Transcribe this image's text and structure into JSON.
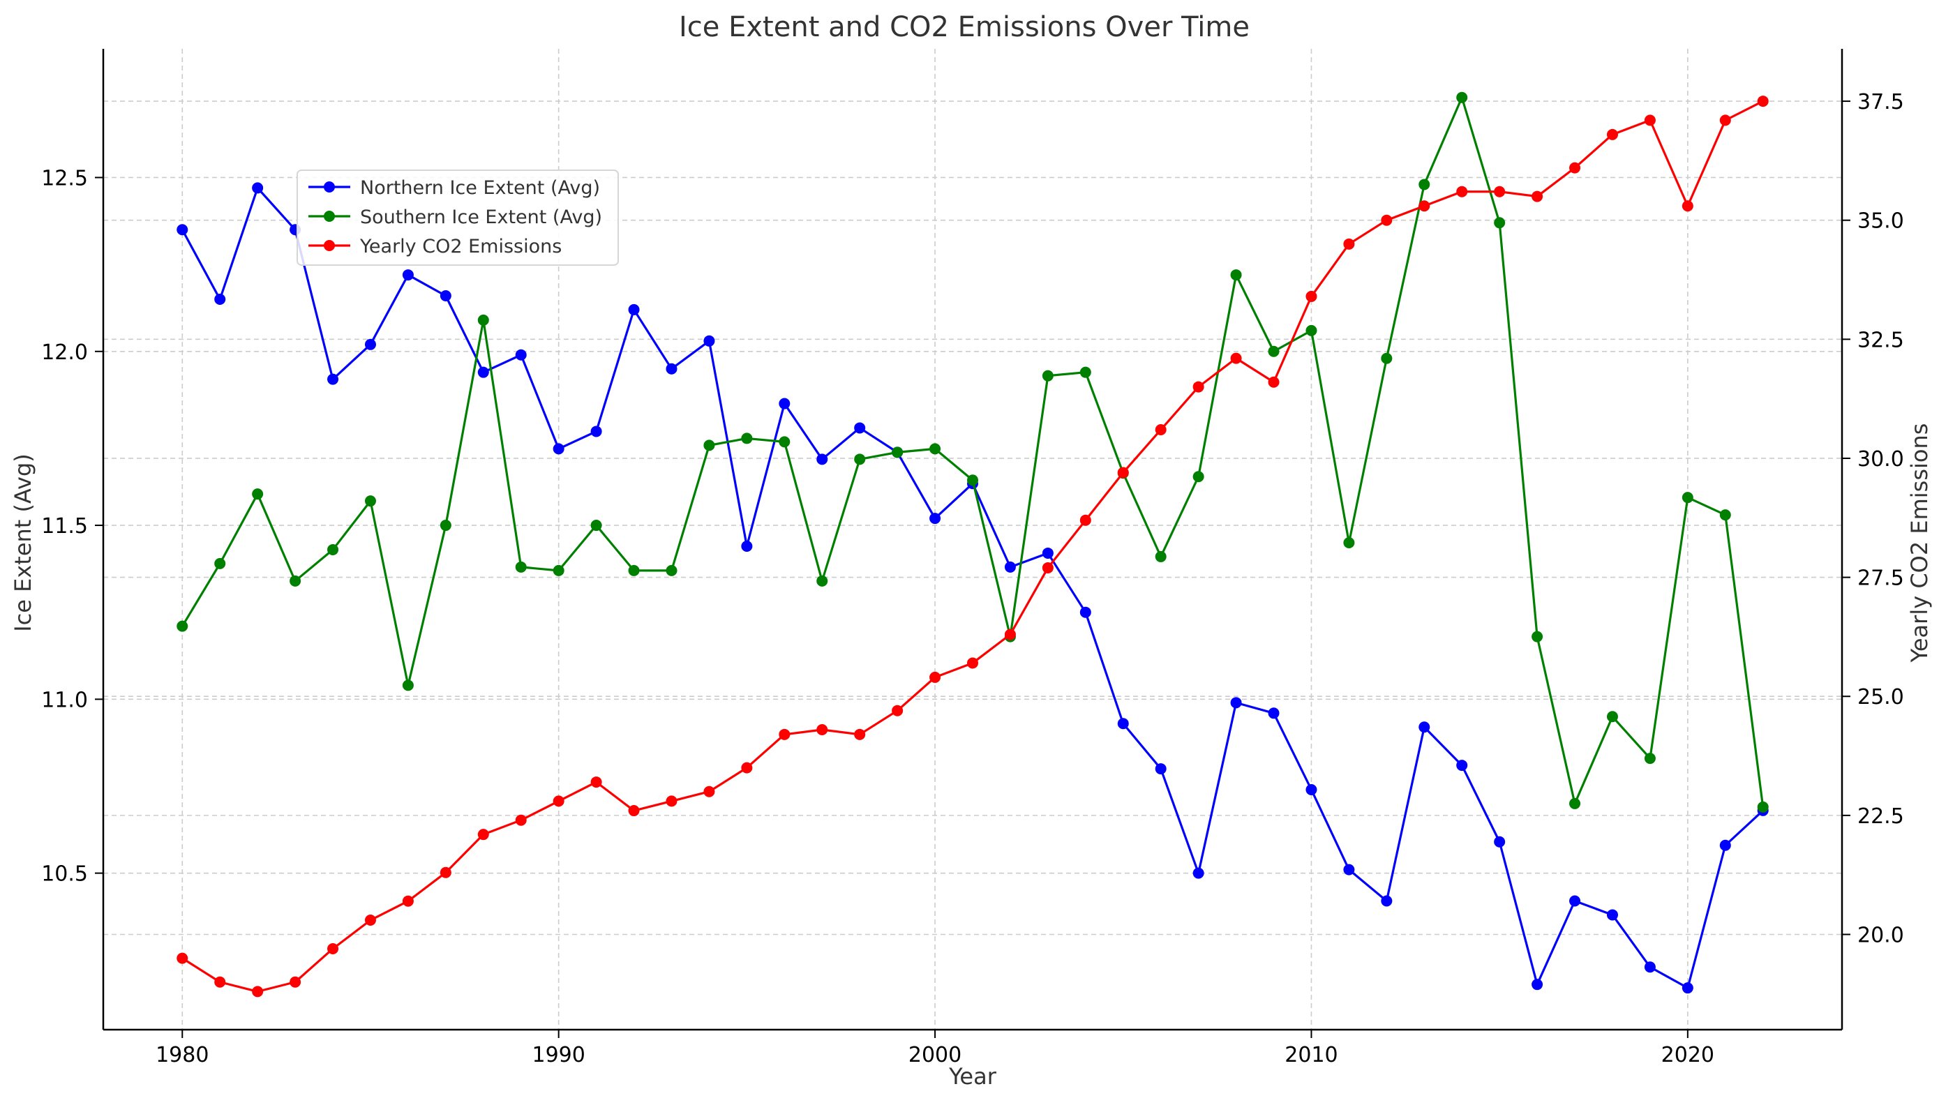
{
  "chart_data": {
    "type": "line",
    "title": "Ice Extent and CO2 Emissions Over Time",
    "xlabel": "Year",
    "ylabel_left": "Ice Extent (Avg)",
    "ylabel_right": "Yearly CO2 Emissions",
    "xlim": [
      1977.9,
      2024.1
    ],
    "ylim_left": [
      10.05,
      12.87
    ],
    "ylim_right": [
      18.0,
      38.6
    ],
    "x_ticks": [
      1980,
      1990,
      2000,
      2010,
      2020
    ],
    "y_ticks_left": [
      10.5,
      11.0,
      11.5,
      12.0,
      12.5
    ],
    "y_ticks_right": [
      20.0,
      22.5,
      25.0,
      27.5,
      30.0,
      32.5,
      35.0,
      37.5
    ],
    "grid": true,
    "legend_position": "upper-left",
    "x": [
      1980,
      1981,
      1982,
      1983,
      1984,
      1985,
      1986,
      1987,
      1988,
      1989,
      1990,
      1991,
      1992,
      1993,
      1994,
      1995,
      1996,
      1997,
      1998,
      1999,
      2000,
      2001,
      2002,
      2003,
      2004,
      2005,
      2006,
      2007,
      2008,
      2009,
      2010,
      2011,
      2012,
      2013,
      2014,
      2015,
      2016,
      2017,
      2018,
      2019,
      2020,
      2021,
      2022
    ],
    "series": [
      {
        "name": "Northern Ice Extent (Avg)",
        "axis": "left",
        "color": "#0000ff",
        "values": [
          12.35,
          12.15,
          12.47,
          12.35,
          11.92,
          12.02,
          12.22,
          12.16,
          11.94,
          11.99,
          11.72,
          11.77,
          12.12,
          11.95,
          12.03,
          11.44,
          11.85,
          11.69,
          11.78,
          11.71,
          11.52,
          11.62,
          11.38,
          11.42,
          11.25,
          10.93,
          10.8,
          10.5,
          10.99,
          10.96,
          10.74,
          10.51,
          10.42,
          10.92,
          10.81,
          10.59,
          10.18,
          10.42,
          10.38,
          10.23,
          10.17,
          10.58,
          10.68
        ]
      },
      {
        "name": "Southern Ice Extent (Avg)",
        "axis": "left",
        "color": "#008000",
        "values": [
          11.21,
          11.39,
          11.59,
          11.34,
          11.43,
          11.57,
          11.04,
          11.5,
          12.09,
          11.38,
          11.37,
          11.5,
          11.37,
          11.37,
          11.73,
          11.75,
          11.74,
          11.34,
          11.69,
          11.71,
          11.72,
          11.63,
          11.18,
          11.93,
          11.94,
          11.65,
          11.41,
          11.64,
          12.22,
          12.0,
          12.06,
          11.45,
          11.98,
          12.48,
          12.73,
          12.37,
          11.18,
          10.7,
          10.95,
          10.83,
          11.58,
          11.53,
          10.69
        ]
      },
      {
        "name": "Yearly CO2 Emissions",
        "axis": "right",
        "color": "#ff0000",
        "values": [
          19.5,
          19.0,
          18.8,
          19.0,
          19.7,
          20.3,
          20.7,
          21.3,
          22.1,
          22.4,
          22.8,
          23.2,
          22.6,
          22.8,
          23.0,
          23.5,
          24.2,
          24.3,
          24.2,
          24.7,
          25.4,
          25.7,
          26.3,
          27.7,
          28.7,
          29.7,
          30.6,
          31.5,
          32.1,
          31.6,
          33.4,
          34.5,
          35.0,
          35.3,
          35.6,
          35.6,
          35.5,
          36.1,
          36.8,
          37.1,
          35.3,
          37.1,
          37.5
        ]
      }
    ]
  }
}
